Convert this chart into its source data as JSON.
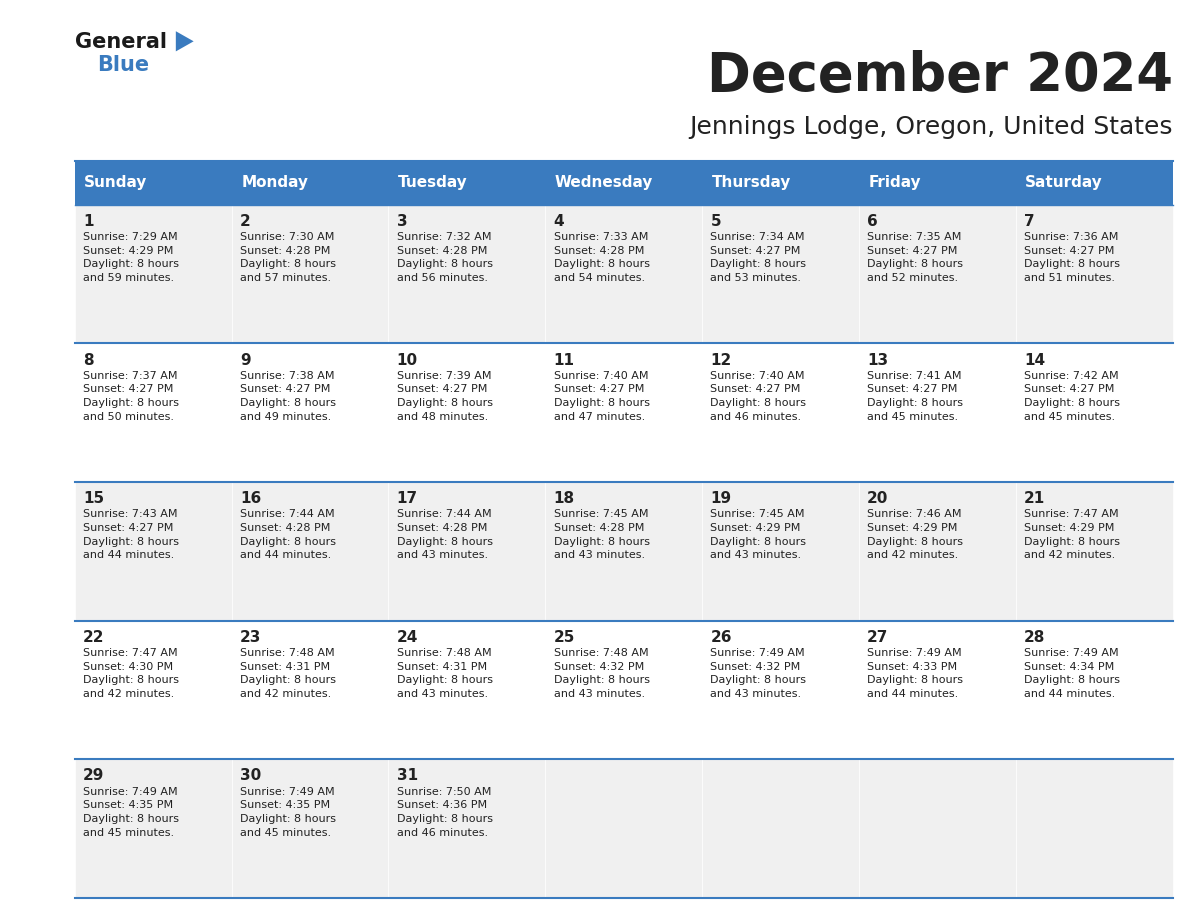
{
  "title": "December 2024",
  "subtitle": "Jennings Lodge, Oregon, United States",
  "header_color": "#3a7bbf",
  "header_text_color": "#ffffff",
  "days_of_week": [
    "Sunday",
    "Monday",
    "Tuesday",
    "Wednesday",
    "Thursday",
    "Friday",
    "Saturday"
  ],
  "cell_bg_colors": [
    "#f0f0f0",
    "#ffffff"
  ],
  "border_color": "#3a7bbf",
  "text_color": "#222222",
  "calendar_data": [
    [
      {
        "day": 1,
        "sunrise": "7:29 AM",
        "sunset": "4:29 PM",
        "daylight": "8 hours\nand 59 minutes."
      },
      {
        "day": 2,
        "sunrise": "7:30 AM",
        "sunset": "4:28 PM",
        "daylight": "8 hours\nand 57 minutes."
      },
      {
        "day": 3,
        "sunrise": "7:32 AM",
        "sunset": "4:28 PM",
        "daylight": "8 hours\nand 56 minutes."
      },
      {
        "day": 4,
        "sunrise": "7:33 AM",
        "sunset": "4:28 PM",
        "daylight": "8 hours\nand 54 minutes."
      },
      {
        "day": 5,
        "sunrise": "7:34 AM",
        "sunset": "4:27 PM",
        "daylight": "8 hours\nand 53 minutes."
      },
      {
        "day": 6,
        "sunrise": "7:35 AM",
        "sunset": "4:27 PM",
        "daylight": "8 hours\nand 52 minutes."
      },
      {
        "day": 7,
        "sunrise": "7:36 AM",
        "sunset": "4:27 PM",
        "daylight": "8 hours\nand 51 minutes."
      }
    ],
    [
      {
        "day": 8,
        "sunrise": "7:37 AM",
        "sunset": "4:27 PM",
        "daylight": "8 hours\nand 50 minutes."
      },
      {
        "day": 9,
        "sunrise": "7:38 AM",
        "sunset": "4:27 PM",
        "daylight": "8 hours\nand 49 minutes."
      },
      {
        "day": 10,
        "sunrise": "7:39 AM",
        "sunset": "4:27 PM",
        "daylight": "8 hours\nand 48 minutes."
      },
      {
        "day": 11,
        "sunrise": "7:40 AM",
        "sunset": "4:27 PM",
        "daylight": "8 hours\nand 47 minutes."
      },
      {
        "day": 12,
        "sunrise": "7:40 AM",
        "sunset": "4:27 PM",
        "daylight": "8 hours\nand 46 minutes."
      },
      {
        "day": 13,
        "sunrise": "7:41 AM",
        "sunset": "4:27 PM",
        "daylight": "8 hours\nand 45 minutes."
      },
      {
        "day": 14,
        "sunrise": "7:42 AM",
        "sunset": "4:27 PM",
        "daylight": "8 hours\nand 45 minutes."
      }
    ],
    [
      {
        "day": 15,
        "sunrise": "7:43 AM",
        "sunset": "4:27 PM",
        "daylight": "8 hours\nand 44 minutes."
      },
      {
        "day": 16,
        "sunrise": "7:44 AM",
        "sunset": "4:28 PM",
        "daylight": "8 hours\nand 44 minutes."
      },
      {
        "day": 17,
        "sunrise": "7:44 AM",
        "sunset": "4:28 PM",
        "daylight": "8 hours\nand 43 minutes."
      },
      {
        "day": 18,
        "sunrise": "7:45 AM",
        "sunset": "4:28 PM",
        "daylight": "8 hours\nand 43 minutes."
      },
      {
        "day": 19,
        "sunrise": "7:45 AM",
        "sunset": "4:29 PM",
        "daylight": "8 hours\nand 43 minutes."
      },
      {
        "day": 20,
        "sunrise": "7:46 AM",
        "sunset": "4:29 PM",
        "daylight": "8 hours\nand 42 minutes."
      },
      {
        "day": 21,
        "sunrise": "7:47 AM",
        "sunset": "4:29 PM",
        "daylight": "8 hours\nand 42 minutes."
      }
    ],
    [
      {
        "day": 22,
        "sunrise": "7:47 AM",
        "sunset": "4:30 PM",
        "daylight": "8 hours\nand 42 minutes."
      },
      {
        "day": 23,
        "sunrise": "7:48 AM",
        "sunset": "4:31 PM",
        "daylight": "8 hours\nand 42 minutes."
      },
      {
        "day": 24,
        "sunrise": "7:48 AM",
        "sunset": "4:31 PM",
        "daylight": "8 hours\nand 43 minutes."
      },
      {
        "day": 25,
        "sunrise": "7:48 AM",
        "sunset": "4:32 PM",
        "daylight": "8 hours\nand 43 minutes."
      },
      {
        "day": 26,
        "sunrise": "7:49 AM",
        "sunset": "4:32 PM",
        "daylight": "8 hours\nand 43 minutes."
      },
      {
        "day": 27,
        "sunrise": "7:49 AM",
        "sunset": "4:33 PM",
        "daylight": "8 hours\nand 44 minutes."
      },
      {
        "day": 28,
        "sunrise": "7:49 AM",
        "sunset": "4:34 PM",
        "daylight": "8 hours\nand 44 minutes."
      }
    ],
    [
      {
        "day": 29,
        "sunrise": "7:49 AM",
        "sunset": "4:35 PM",
        "daylight": "8 hours\nand 45 minutes."
      },
      {
        "day": 30,
        "sunrise": "7:49 AM",
        "sunset": "4:35 PM",
        "daylight": "8 hours\nand 45 minutes."
      },
      {
        "day": 31,
        "sunrise": "7:50 AM",
        "sunset": "4:36 PM",
        "daylight": "8 hours\nand 46 minutes."
      },
      null,
      null,
      null,
      null
    ]
  ]
}
